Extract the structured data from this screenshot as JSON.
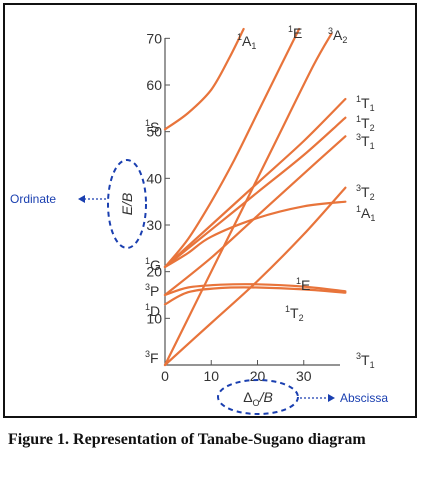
{
  "chart_data": {
    "type": "line",
    "xlabel": "Δ",
    "xlabel_sub": "O",
    "xlabel_suffix": "/B",
    "ylabel": "E/B",
    "xlim": [
      0,
      40
    ],
    "ylim": [
      0,
      75
    ],
    "x_ticks": [
      "0",
      "10",
      "20",
      "30"
    ],
    "y_ticks": [
      "10",
      "20",
      "30",
      "40",
      "50",
      "60",
      "70"
    ],
    "ordinate_label": "Ordinate",
    "abscissa_label": "Abscissa",
    "free_ion_terms": [
      {
        "sup": "1",
        "letter": "S",
        "y": 50.5
      },
      {
        "sup": "1",
        "letter": "G",
        "y": 21.0
      },
      {
        "sup": "3",
        "letter": "P",
        "y": 15.0
      },
      {
        "sup": "1",
        "letter": "D",
        "y": 13.0
      },
      {
        "sup": "3",
        "letter": "F",
        "y": 0.0
      }
    ],
    "series": [
      {
        "sup": "1",
        "main": "A",
        "sub": "1",
        "color": "#e8743b",
        "points": [
          [
            0,
            50.5
          ],
          [
            5,
            54
          ],
          [
            10,
            59
          ],
          [
            14,
            66
          ],
          [
            17,
            72
          ]
        ]
      },
      {
        "sup": "1",
        "main": "E",
        "sub": "",
        "color": "#e8743b",
        "points": [
          [
            0,
            21
          ],
          [
            5,
            27
          ],
          [
            10,
            35
          ],
          [
            15,
            44
          ],
          [
            20,
            54
          ],
          [
            25,
            64
          ],
          [
            29,
            72
          ]
        ]
      },
      {
        "sup": "3",
        "main": "A",
        "sub": "2",
        "color": "#e8743b",
        "points": [
          [
            0,
            0
          ],
          [
            8,
            16
          ],
          [
            16,
            32
          ],
          [
            24,
            48
          ],
          [
            32,
            64
          ],
          [
            36,
            71
          ]
        ]
      },
      {
        "sup": "1",
        "main": "T",
        "sub": "1",
        "color": "#e8743b",
        "points": [
          [
            0,
            21
          ],
          [
            10,
            30
          ],
          [
            20,
            39
          ],
          [
            30,
            48
          ],
          [
            39,
            57
          ]
        ]
      },
      {
        "sup": "1",
        "main": "T",
        "sub": "2",
        "color": "#e8743b",
        "points": [
          [
            0,
            21
          ],
          [
            10,
            29
          ],
          [
            20,
            37
          ],
          [
            30,
            45
          ],
          [
            39,
            53
          ]
        ]
      },
      {
        "sup": "3",
        "main": "T",
        "sub": "1",
        "color": "#e8743b",
        "points": [
          [
            0,
            15
          ],
          [
            10,
            23
          ],
          [
            20,
            32
          ],
          [
            30,
            41
          ],
          [
            39,
            49
          ]
        ]
      },
      {
        "sup": "3",
        "main": "T",
        "sub": "2",
        "color": "#e8743b",
        "points": [
          [
            0,
            0
          ],
          [
            10,
            9
          ],
          [
            20,
            18
          ],
          [
            30,
            28
          ],
          [
            39,
            38
          ]
        ]
      },
      {
        "sup": "1",
        "main": "A",
        "sub": "1",
        "color": "#e8743b",
        "points": [
          [
            0,
            21
          ],
          [
            5,
            24
          ],
          [
            10,
            27.5
          ],
          [
            20,
            31.5
          ],
          [
            30,
            34
          ],
          [
            39,
            35
          ]
        ]
      },
      {
        "sup": "1",
        "main": "E",
        "sub": "",
        "color": "#e8743b",
        "points": [
          [
            0,
            15
          ],
          [
            5,
            16.6
          ],
          [
            12,
            17.2
          ],
          [
            20,
            17.3
          ],
          [
            30,
            16.8
          ],
          [
            39,
            15.8
          ]
        ]
      },
      {
        "sup": "1",
        "main": "T",
        "sub": "2",
        "color": "#e8743b",
        "points": [
          [
            0,
            13
          ],
          [
            5,
            15.6
          ],
          [
            12,
            16.5
          ],
          [
            20,
            16.6
          ],
          [
            30,
            16.2
          ],
          [
            39,
            15.5
          ]
        ]
      },
      {
        "sup": "3",
        "main": "T",
        "sub": "1",
        "color": "#e8743b",
        "points": [
          [
            0,
            0
          ],
          [
            39,
            0
          ]
        ]
      }
    ]
  },
  "caption": "Figure 1. Representation of Tanabe-Sugano diagram"
}
